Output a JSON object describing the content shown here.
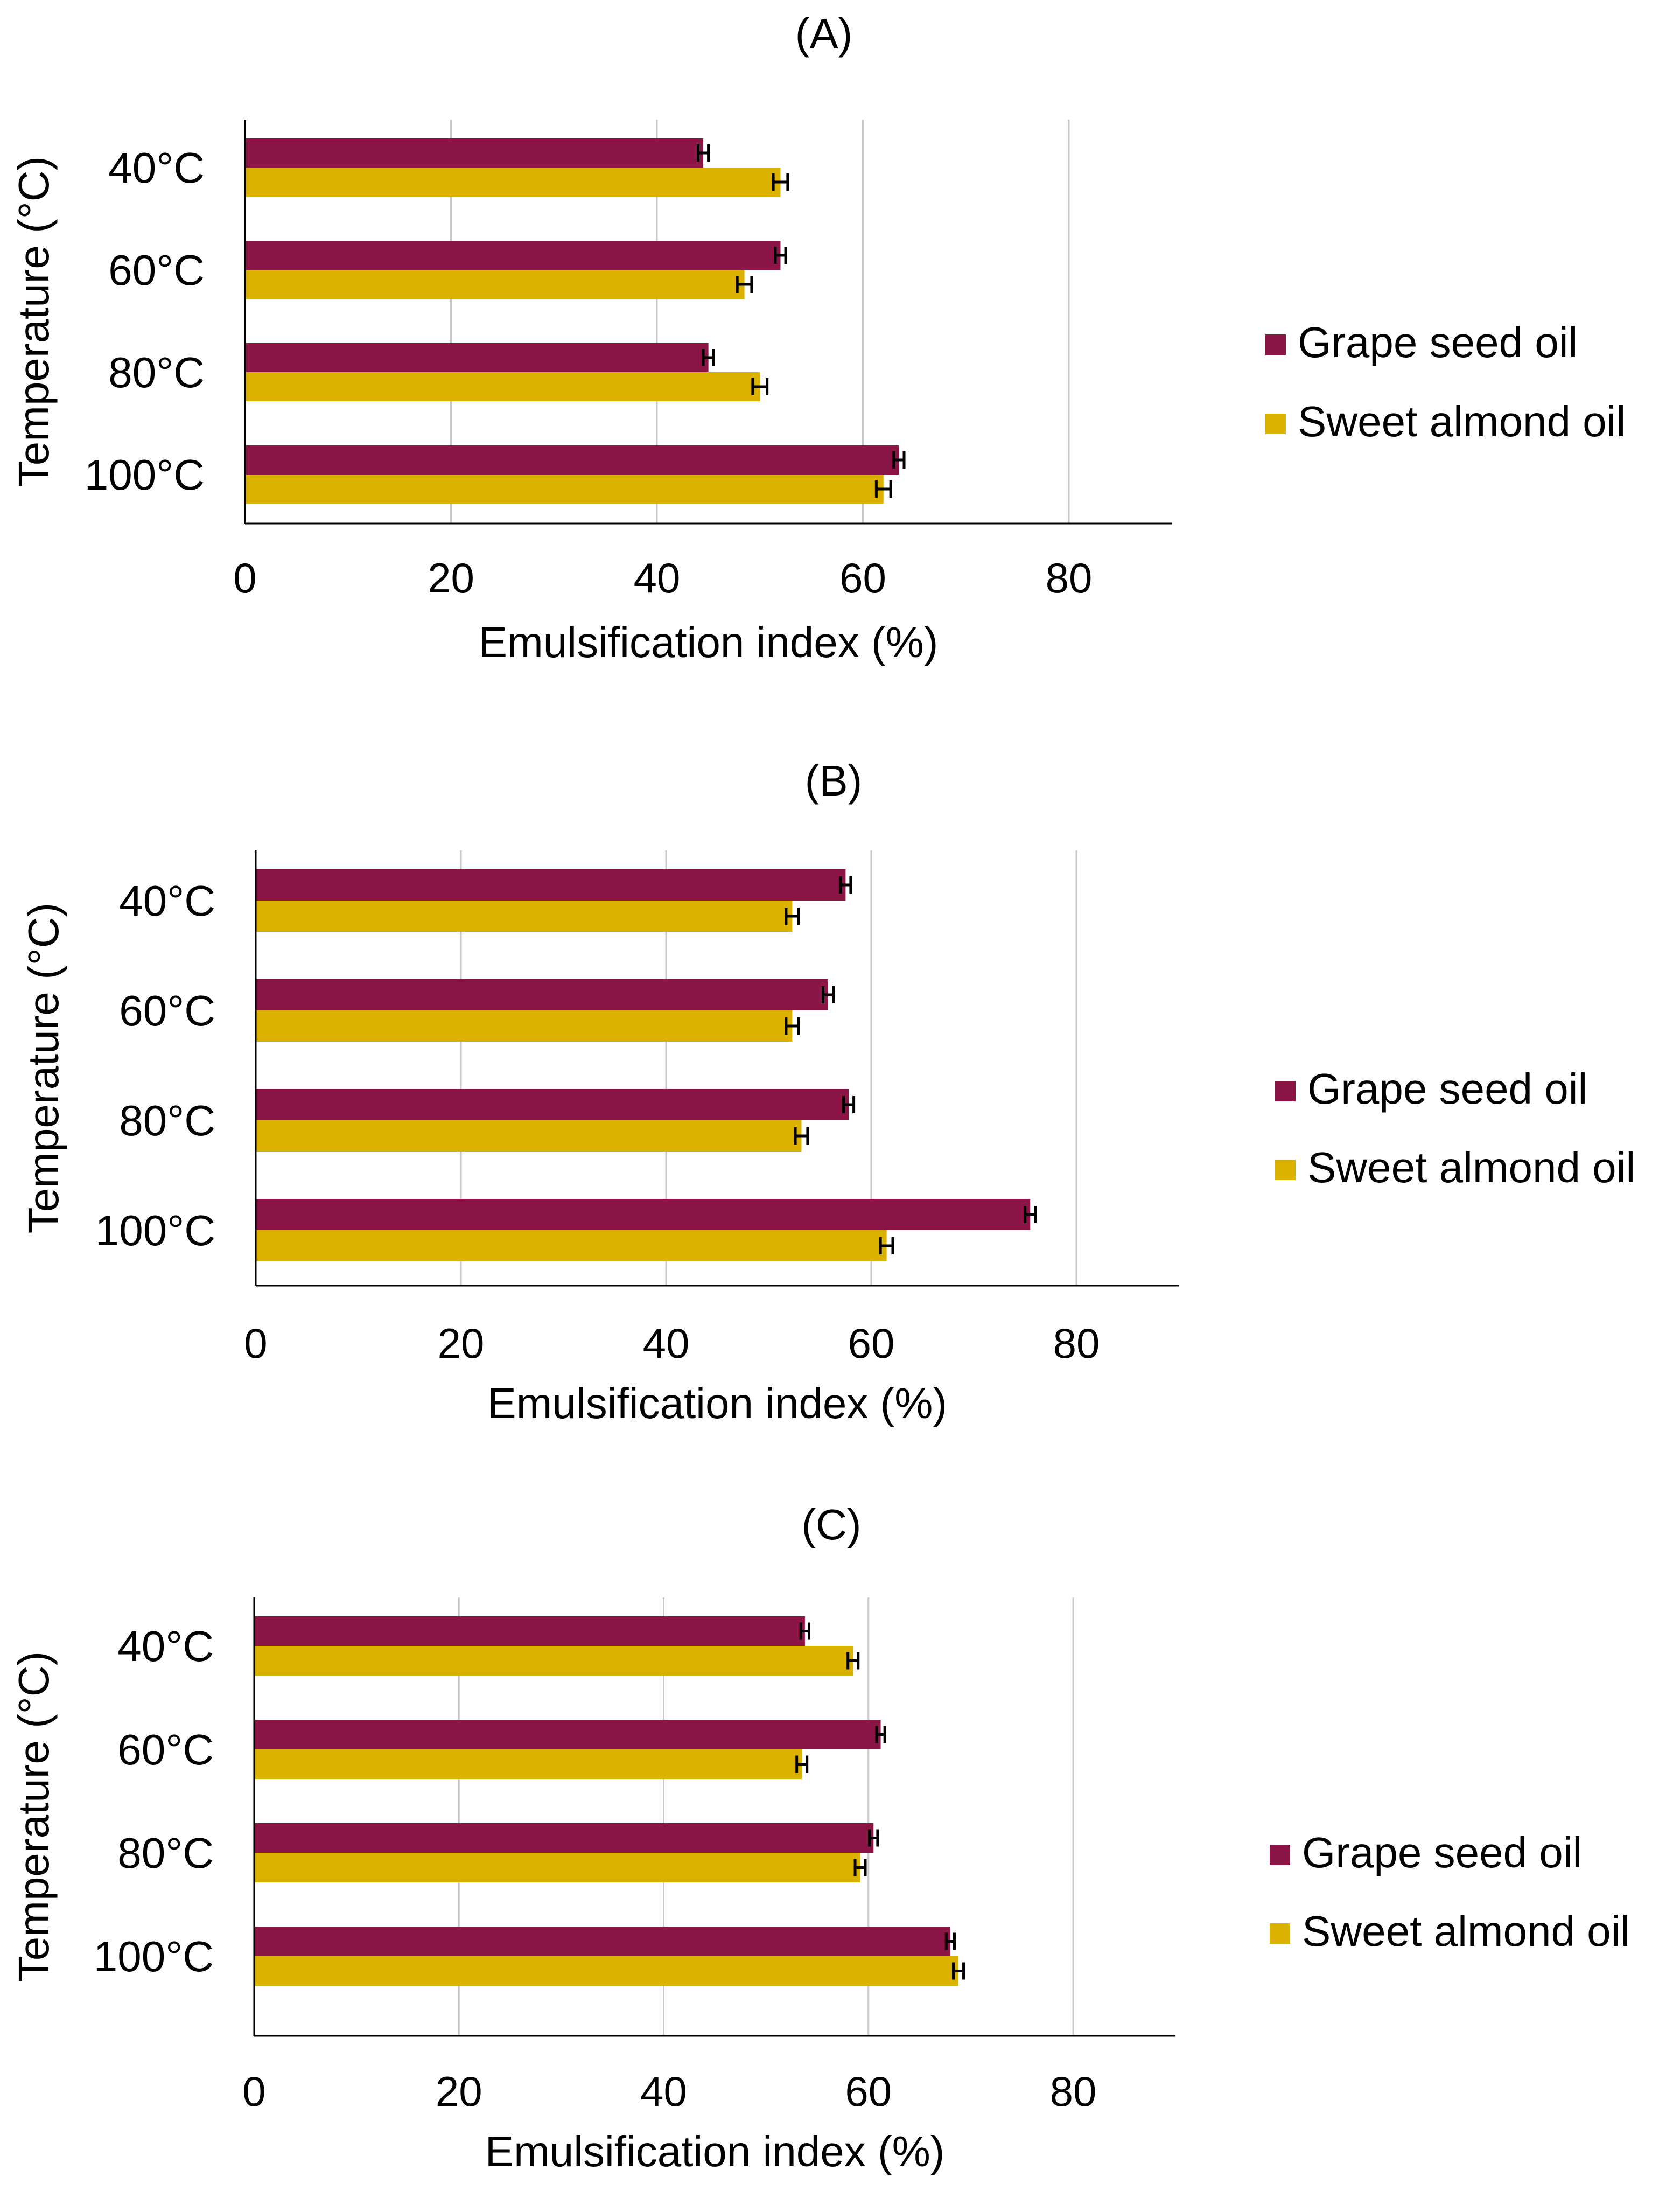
{
  "chart_data": [
    {
      "type": "bar",
      "orientation": "horizontal",
      "title": "(A)",
      "categories": [
        "40°C",
        "60°C",
        "80°C",
        "100°C"
      ],
      "series": [
        {
          "name": "Grape seed oil",
          "color": "#8b1546",
          "values": [
            44.5,
            52.0,
            45.0,
            63.5
          ],
          "errors": [
            0.5,
            0.5,
            0.5,
            0.5
          ]
        },
        {
          "name": "Sweet almond oil",
          "color": "#dbb200",
          "values": [
            52.0,
            48.5,
            50.0,
            62.0
          ],
          "errors": [
            0.7,
            0.7,
            0.7,
            0.7
          ]
        }
      ],
      "xlabel": "Emulsification index (%)",
      "ylabel": "Temperature (°C)",
      "xlim": [
        0,
        90
      ],
      "xticks": [
        0,
        20,
        40,
        60,
        80
      ],
      "grid": true,
      "legend": "right"
    },
    {
      "type": "bar",
      "orientation": "horizontal",
      "title": "(B)",
      "categories": [
        "40°C",
        "60°C",
        "80°C",
        "100°C"
      ],
      "series": [
        {
          "name": "Grape seed oil",
          "color": "#8b1546",
          "values": [
            57.5,
            55.8,
            57.8,
            75.5
          ],
          "errors": [
            0.5,
            0.5,
            0.5,
            0.5
          ]
        },
        {
          "name": "Sweet almond oil",
          "color": "#dbb200",
          "values": [
            52.3,
            52.3,
            53.2,
            61.5
          ],
          "errors": [
            0.6,
            0.6,
            0.6,
            0.6
          ]
        }
      ],
      "xlabel": "Emulsification index (%)",
      "ylabel": "Temperature (°C)",
      "xlim": [
        0,
        90
      ],
      "xticks": [
        0,
        20,
        40,
        60,
        80
      ],
      "grid": true,
      "legend": "right"
    },
    {
      "type": "bar",
      "orientation": "horizontal",
      "title": "(C)",
      "categories": [
        "40°C",
        "60°C",
        "80°C",
        "100°C"
      ],
      "series": [
        {
          "name": "Grape seed oil",
          "color": "#8b1546",
          "values": [
            53.8,
            61.2,
            60.5,
            68.0
          ],
          "errors": [
            0.4,
            0.4,
            0.4,
            0.4
          ]
        },
        {
          "name": "Sweet almond oil",
          "color": "#dbb200",
          "values": [
            58.5,
            53.5,
            59.2,
            68.8
          ],
          "errors": [
            0.5,
            0.5,
            0.5,
            0.5
          ]
        }
      ],
      "xlabel": "Emulsification index (%)",
      "ylabel": "Temperature (°C)",
      "xlim": [
        0,
        90
      ],
      "xticks": [
        0,
        20,
        40,
        60,
        80
      ],
      "grid": true,
      "legend": "right"
    }
  ]
}
